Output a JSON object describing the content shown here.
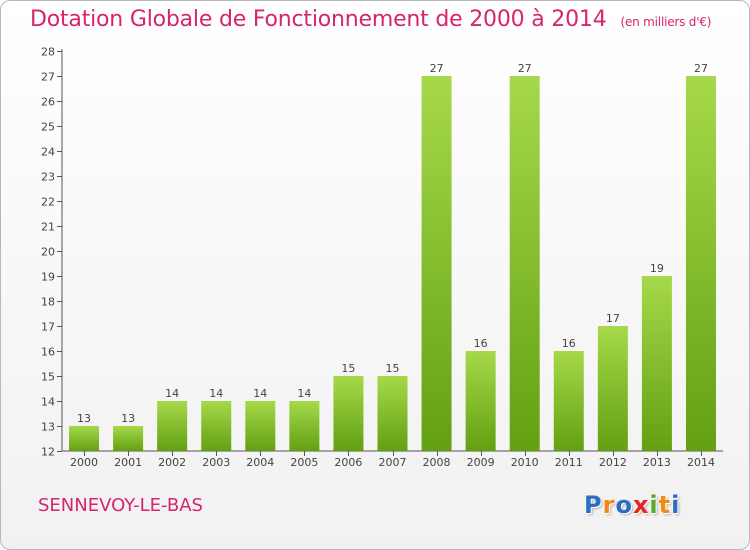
{
  "header": {
    "title": "Dotation Globale de Fonctionnement de 2000 à 2014",
    "unit": "(en milliers d'€)"
  },
  "footer": {
    "commune": "SENNEVOY-LE-BAS",
    "logo_letters": [
      "P",
      "r",
      "o",
      "x",
      "i",
      "t",
      "i"
    ]
  },
  "colors": {
    "title": "#d6246e",
    "bar_light": "#a6d94a",
    "bar_dark": "#62a012",
    "logo": [
      "#2a6fc1",
      "#f08a12",
      "#2a6fc1",
      "#e0261e",
      "#5aa82a",
      "#f08a12",
      "#2a6fc1"
    ]
  },
  "chart_data": {
    "type": "bar",
    "title": "Dotation Globale de Fonctionnement de 2000 à 2014",
    "subtitle": "(en milliers d'€)",
    "xlabel": "",
    "ylabel": "",
    "categories": [
      "2000",
      "2001",
      "2002",
      "2003",
      "2004",
      "2005",
      "2006",
      "2007",
      "2008",
      "2009",
      "2010",
      "2011",
      "2012",
      "2013",
      "2014"
    ],
    "values": [
      13,
      13,
      14,
      14,
      14,
      14,
      15,
      15,
      27,
      16,
      27,
      16,
      17,
      19,
      27
    ],
    "ylim": [
      12,
      28
    ],
    "yticks": [
      12,
      13,
      14,
      15,
      16,
      17,
      18,
      19,
      20,
      21,
      22,
      23,
      24,
      25,
      26,
      27,
      28
    ],
    "grid": false,
    "legend": "none"
  }
}
